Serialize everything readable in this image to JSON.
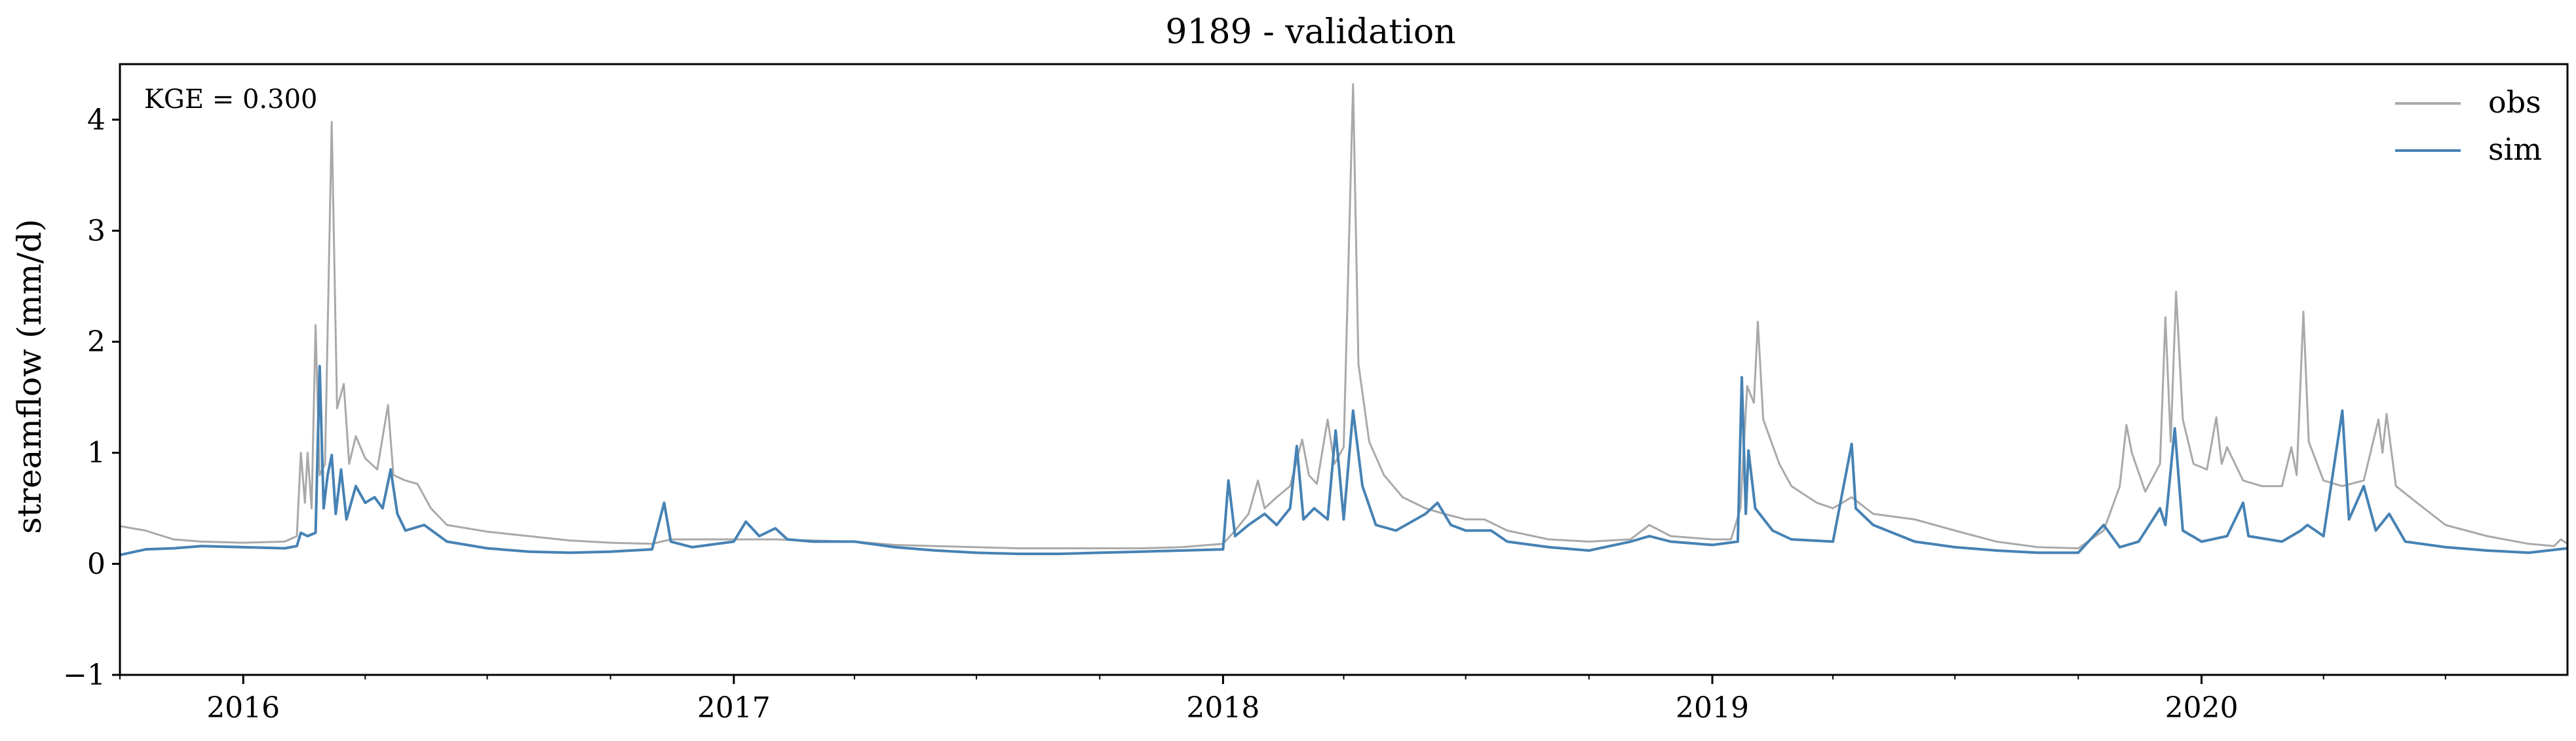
{
  "chart_data": {
    "type": "line",
    "title": "9189 - validation",
    "xlabel": "",
    "ylabel": "streamflow (mm/d)",
    "annotation": "KGE = 0.300",
    "xlim": [
      "2015-10-01",
      "2020-09-30"
    ],
    "ylim": [
      -1,
      4.5
    ],
    "yticks": [
      -1,
      0,
      1,
      2,
      3,
      4
    ],
    "ytick_labels": [
      "−1",
      "0",
      "1",
      "2",
      "3",
      "4"
    ],
    "xticks": [
      "2016-01-01",
      "2017-01-01",
      "2018-01-01",
      "2019-01-01",
      "2020-01-01"
    ],
    "xtick_labels": [
      "2016",
      "2017",
      "2018",
      "2019",
      "2020"
    ],
    "grid": false,
    "legend": {
      "position": "top-right",
      "entries": [
        "obs",
        "sim"
      ]
    },
    "series": [
      {
        "name": "obs",
        "color": "#a9a9a9",
        "points": [
          [
            "2015-10-01",
            0.34
          ],
          [
            "2015-10-20",
            0.3
          ],
          [
            "2015-11-10",
            0.22
          ],
          [
            "2015-12-01",
            0.2
          ],
          [
            "2016-01-01",
            0.19
          ],
          [
            "2016-02-01",
            0.2
          ],
          [
            "2016-02-10",
            0.25
          ],
          [
            "2016-02-13",
            1.0
          ],
          [
            "2016-02-16",
            0.55
          ],
          [
            "2016-02-18",
            1.0
          ],
          [
            "2016-02-21",
            0.5
          ],
          [
            "2016-02-24",
            2.15
          ],
          [
            "2016-02-27",
            0.8
          ],
          [
            "2016-03-02",
            0.9
          ],
          [
            "2016-03-07",
            3.98
          ],
          [
            "2016-03-11",
            1.4
          ],
          [
            "2016-03-16",
            1.62
          ],
          [
            "2016-03-20",
            0.9
          ],
          [
            "2016-03-25",
            1.15
          ],
          [
            "2016-04-01",
            0.95
          ],
          [
            "2016-04-10",
            0.85
          ],
          [
            "2016-04-18",
            1.43
          ],
          [
            "2016-04-22",
            0.8
          ],
          [
            "2016-05-01",
            0.75
          ],
          [
            "2016-05-10",
            0.72
          ],
          [
            "2016-05-20",
            0.5
          ],
          [
            "2016-06-01",
            0.35
          ],
          [
            "2016-07-01",
            0.29
          ],
          [
            "2016-08-01",
            0.25
          ],
          [
            "2016-09-01",
            0.21
          ],
          [
            "2016-10-01",
            0.19
          ],
          [
            "2016-11-01",
            0.18
          ],
          [
            "2016-11-15",
            0.22
          ],
          [
            "2016-12-01",
            0.22
          ],
          [
            "2017-01-01",
            0.22
          ],
          [
            "2017-02-01",
            0.22
          ],
          [
            "2017-03-01",
            0.21
          ],
          [
            "2017-04-01",
            0.2
          ],
          [
            "2017-05-01",
            0.17
          ],
          [
            "2017-06-01",
            0.16
          ],
          [
            "2017-07-01",
            0.15
          ],
          [
            "2017-08-01",
            0.14
          ],
          [
            "2017-09-01",
            0.14
          ],
          [
            "2017-10-01",
            0.14
          ],
          [
            "2017-11-01",
            0.14
          ],
          [
            "2017-12-01",
            0.15
          ],
          [
            "2018-01-01",
            0.18
          ],
          [
            "2018-01-10",
            0.3
          ],
          [
            "2018-01-20",
            0.45
          ],
          [
            "2018-01-27",
            0.75
          ],
          [
            "2018-02-01",
            0.5
          ],
          [
            "2018-02-10",
            0.6
          ],
          [
            "2018-02-20",
            0.7
          ],
          [
            "2018-03-01",
            1.12
          ],
          [
            "2018-03-06",
            0.8
          ],
          [
            "2018-03-12",
            0.72
          ],
          [
            "2018-03-20",
            1.3
          ],
          [
            "2018-03-25",
            0.9
          ],
          [
            "2018-04-01",
            1.05
          ],
          [
            "2018-04-08",
            4.32
          ],
          [
            "2018-04-12",
            1.8
          ],
          [
            "2018-04-20",
            1.1
          ],
          [
            "2018-05-01",
            0.8
          ],
          [
            "2018-05-15",
            0.6
          ],
          [
            "2018-06-01",
            0.5
          ],
          [
            "2018-06-15",
            0.45
          ],
          [
            "2018-07-01",
            0.4
          ],
          [
            "2018-07-15",
            0.4
          ],
          [
            "2018-08-01",
            0.3
          ],
          [
            "2018-09-01",
            0.22
          ],
          [
            "2018-10-01",
            0.2
          ],
          [
            "2018-11-01",
            0.22
          ],
          [
            "2018-11-15",
            0.35
          ],
          [
            "2018-12-01",
            0.25
          ],
          [
            "2019-01-01",
            0.22
          ],
          [
            "2019-01-15",
            0.22
          ],
          [
            "2019-01-22",
            0.5
          ],
          [
            "2019-01-27",
            1.6
          ],
          [
            "2019-02-01",
            1.45
          ],
          [
            "2019-02-04",
            2.18
          ],
          [
            "2019-02-08",
            1.3
          ],
          [
            "2019-02-20",
            0.9
          ],
          [
            "2019-03-01",
            0.7
          ],
          [
            "2019-03-20",
            0.55
          ],
          [
            "2019-04-01",
            0.5
          ],
          [
            "2019-04-15",
            0.6
          ],
          [
            "2019-05-01",
            0.45
          ],
          [
            "2019-06-01",
            0.4
          ],
          [
            "2019-07-01",
            0.3
          ],
          [
            "2019-08-01",
            0.2
          ],
          [
            "2019-09-01",
            0.15
          ],
          [
            "2019-10-01",
            0.14
          ],
          [
            "2019-10-20",
            0.3
          ],
          [
            "2019-11-01",
            0.7
          ],
          [
            "2019-11-06",
            1.25
          ],
          [
            "2019-11-10",
            1.0
          ],
          [
            "2019-11-20",
            0.65
          ],
          [
            "2019-12-01",
            0.9
          ],
          [
            "2019-12-05",
            2.22
          ],
          [
            "2019-12-09",
            1.1
          ],
          [
            "2019-12-13",
            2.45
          ],
          [
            "2019-12-18",
            1.3
          ],
          [
            "2019-12-26",
            0.9
          ],
          [
            "2020-01-05",
            0.85
          ],
          [
            "2020-01-12",
            1.32
          ],
          [
            "2020-01-16",
            0.9
          ],
          [
            "2020-01-20",
            1.05
          ],
          [
            "2020-02-01",
            0.75
          ],
          [
            "2020-02-15",
            0.7
          ],
          [
            "2020-03-01",
            0.7
          ],
          [
            "2020-03-08",
            1.05
          ],
          [
            "2020-03-12",
            0.8
          ],
          [
            "2020-03-17",
            2.27
          ],
          [
            "2020-03-21",
            1.1
          ],
          [
            "2020-04-01",
            0.75
          ],
          [
            "2020-04-15",
            0.7
          ],
          [
            "2020-05-01",
            0.75
          ],
          [
            "2020-05-12",
            1.3
          ],
          [
            "2020-05-15",
            1.0
          ],
          [
            "2020-05-18",
            1.35
          ],
          [
            "2020-05-25",
            0.7
          ],
          [
            "2020-06-15",
            0.5
          ],
          [
            "2020-07-01",
            0.35
          ],
          [
            "2020-08-01",
            0.25
          ],
          [
            "2020-09-01",
            0.18
          ],
          [
            "2020-09-20",
            0.16
          ],
          [
            "2020-09-25",
            0.22
          ],
          [
            "2020-09-30",
            0.18
          ]
        ]
      },
      {
        "name": "sim",
        "color": "#4682b4",
        "points": [
          [
            "2015-10-01",
            0.08
          ],
          [
            "2015-10-20",
            0.13
          ],
          [
            "2015-11-10",
            0.14
          ],
          [
            "2015-12-01",
            0.16
          ],
          [
            "2016-01-01",
            0.15
          ],
          [
            "2016-02-01",
            0.14
          ],
          [
            "2016-02-10",
            0.16
          ],
          [
            "2016-02-13",
            0.28
          ],
          [
            "2016-02-18",
            0.25
          ],
          [
            "2016-02-24",
            0.28
          ],
          [
            "2016-02-27",
            1.78
          ],
          [
            "2016-03-01",
            0.5
          ],
          [
            "2016-03-04",
            0.8
          ],
          [
            "2016-03-07",
            0.98
          ],
          [
            "2016-03-10",
            0.45
          ],
          [
            "2016-03-14",
            0.85
          ],
          [
            "2016-03-18",
            0.4
          ],
          [
            "2016-03-25",
            0.7
          ],
          [
            "2016-04-01",
            0.55
          ],
          [
            "2016-04-08",
            0.6
          ],
          [
            "2016-04-14",
            0.5
          ],
          [
            "2016-04-20",
            0.85
          ],
          [
            "2016-04-25",
            0.45
          ],
          [
            "2016-05-01",
            0.3
          ],
          [
            "2016-05-15",
            0.35
          ],
          [
            "2016-06-01",
            0.2
          ],
          [
            "2016-07-01",
            0.14
          ],
          [
            "2016-08-01",
            0.11
          ],
          [
            "2016-09-01",
            0.1
          ],
          [
            "2016-10-01",
            0.11
          ],
          [
            "2016-11-01",
            0.13
          ],
          [
            "2016-11-10",
            0.55
          ],
          [
            "2016-11-15",
            0.2
          ],
          [
            "2016-12-01",
            0.15
          ],
          [
            "2017-01-01",
            0.2
          ],
          [
            "2017-01-10",
            0.38
          ],
          [
            "2017-01-20",
            0.25
          ],
          [
            "2017-02-01",
            0.32
          ],
          [
            "2017-02-10",
            0.22
          ],
          [
            "2017-03-01",
            0.2
          ],
          [
            "2017-04-01",
            0.2
          ],
          [
            "2017-05-01",
            0.15
          ],
          [
            "2017-06-01",
            0.12
          ],
          [
            "2017-07-01",
            0.1
          ],
          [
            "2017-08-01",
            0.09
          ],
          [
            "2017-09-01",
            0.09
          ],
          [
            "2017-10-01",
            0.1
          ],
          [
            "2017-11-01",
            0.11
          ],
          [
            "2017-12-01",
            0.12
          ],
          [
            "2018-01-01",
            0.13
          ],
          [
            "2018-01-05",
            0.75
          ],
          [
            "2018-01-10",
            0.25
          ],
          [
            "2018-01-20",
            0.35
          ],
          [
            "2018-02-01",
            0.45
          ],
          [
            "2018-02-10",
            0.35
          ],
          [
            "2018-02-20",
            0.5
          ],
          [
            "2018-02-25",
            1.06
          ],
          [
            "2018-03-02",
            0.4
          ],
          [
            "2018-03-10",
            0.5
          ],
          [
            "2018-03-20",
            0.4
          ],
          [
            "2018-03-26",
            1.2
          ],
          [
            "2018-04-01",
            0.4
          ],
          [
            "2018-04-08",
            1.38
          ],
          [
            "2018-04-15",
            0.7
          ],
          [
            "2018-04-25",
            0.35
          ],
          [
            "2018-05-10",
            0.3
          ],
          [
            "2018-06-01",
            0.45
          ],
          [
            "2018-06-10",
            0.55
          ],
          [
            "2018-06-20",
            0.35
          ],
          [
            "2018-07-01",
            0.3
          ],
          [
            "2018-07-20",
            0.3
          ],
          [
            "2018-08-01",
            0.2
          ],
          [
            "2018-09-01",
            0.15
          ],
          [
            "2018-10-01",
            0.12
          ],
          [
            "2018-11-01",
            0.2
          ],
          [
            "2018-11-15",
            0.25
          ],
          [
            "2018-12-01",
            0.2
          ],
          [
            "2019-01-01",
            0.17
          ],
          [
            "2019-01-20",
            0.2
          ],
          [
            "2019-01-23",
            1.68
          ],
          [
            "2019-01-26",
            0.45
          ],
          [
            "2019-01-28",
            1.02
          ],
          [
            "2019-02-02",
            0.5
          ],
          [
            "2019-02-15",
            0.3
          ],
          [
            "2019-03-01",
            0.22
          ],
          [
            "2019-04-01",
            0.2
          ],
          [
            "2019-04-15",
            1.08
          ],
          [
            "2019-04-18",
            0.5
          ],
          [
            "2019-05-01",
            0.35
          ],
          [
            "2019-06-01",
            0.2
          ],
          [
            "2019-07-01",
            0.15
          ],
          [
            "2019-08-01",
            0.12
          ],
          [
            "2019-09-01",
            0.1
          ],
          [
            "2019-10-01",
            0.1
          ],
          [
            "2019-10-20",
            0.35
          ],
          [
            "2019-11-01",
            0.15
          ],
          [
            "2019-11-15",
            0.2
          ],
          [
            "2019-12-01",
            0.5
          ],
          [
            "2019-12-05",
            0.35
          ],
          [
            "2019-12-12",
            1.22
          ],
          [
            "2019-12-18",
            0.3
          ],
          [
            "2020-01-01",
            0.2
          ],
          [
            "2020-01-20",
            0.25
          ],
          [
            "2020-02-01",
            0.55
          ],
          [
            "2020-02-05",
            0.25
          ],
          [
            "2020-03-01",
            0.2
          ],
          [
            "2020-03-15",
            0.3
          ],
          [
            "2020-03-20",
            0.35
          ],
          [
            "2020-04-01",
            0.25
          ],
          [
            "2020-04-15",
            1.38
          ],
          [
            "2020-04-20",
            0.4
          ],
          [
            "2020-05-01",
            0.7
          ],
          [
            "2020-05-10",
            0.3
          ],
          [
            "2020-05-20",
            0.45
          ],
          [
            "2020-06-01",
            0.2
          ],
          [
            "2020-07-01",
            0.15
          ],
          [
            "2020-08-01",
            0.12
          ],
          [
            "2020-09-01",
            0.1
          ],
          [
            "2020-09-30",
            0.14
          ]
        ]
      }
    ]
  }
}
